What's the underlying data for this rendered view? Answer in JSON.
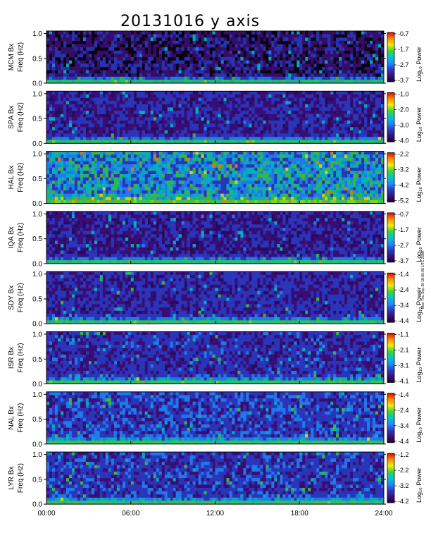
{
  "title": "20131016 y axis",
  "side_note": "Mon Thu Sep 30 18:06:08 UTC 2019",
  "colorbar_colors": [
    "#1a0033",
    "#3c0f78",
    "#2a3cc8",
    "#1e8cff",
    "#00c8c8",
    "#3cd23c",
    "#f0f000",
    "#ff8c00",
    "#e60000"
  ],
  "chart_data": {
    "type": "heatmap",
    "title": "20131016 y axis",
    "x_ticks": [
      "00:00",
      "06:00",
      "12:00",
      "18:00",
      "24:00"
    ],
    "x_range": [
      0,
      24
    ],
    "y_ticks": [
      "0.0",
      "0.5",
      "1.0"
    ],
    "ylim": [
      0,
      1.05
    ],
    "colorbar_label": "Log₁₀ Power",
    "panels": [
      {
        "station": "MCM Bx",
        "ylabel": "Freq (Hz)",
        "cb_ticks": [
          "-0.7",
          "-1.7",
          "-2.7",
          "-3.7"
        ],
        "base_level": 0.15
      },
      {
        "station": "SPA Bx",
        "ylabel": "Freq (Hz)",
        "cb_ticks": [
          "-1.0",
          "-2.0",
          "-3.0",
          "-4.0"
        ],
        "base_level": 0.18
      },
      {
        "station": "HAL Bx",
        "ylabel": "Freq (Hz)",
        "cb_ticks": [
          "-2.2",
          "-3.2",
          "-4.2",
          "-5.2"
        ],
        "base_level": 0.42
      },
      {
        "station": "IQA Bx",
        "ylabel": "Freq (Hz)",
        "cb_ticks": [
          "-0.7",
          "-1.7",
          "-2.7",
          "-3.7"
        ],
        "base_level": 0.17
      },
      {
        "station": "SDY Bx",
        "ylabel": "Freq (Hz)",
        "cb_ticks": [
          "-1.4",
          "-2.4",
          "-3.4",
          "-4.4"
        ],
        "base_level": 0.2
      },
      {
        "station": "ISR Bx",
        "ylabel": "Freq (Hz)",
        "cb_ticks": [
          "-1.1",
          "-2.1",
          "-3.1",
          "-4.1"
        ],
        "base_level": 0.22
      },
      {
        "station": "NAL Bx",
        "ylabel": "Freq (Hz)",
        "cb_ticks": [
          "-1.4",
          "-2.4",
          "-3.4",
          "-4.4"
        ],
        "base_level": 0.25
      },
      {
        "station": "LYR Bx",
        "ylabel": "Freq (Hz)",
        "cb_ticks": [
          "-1.2",
          "-2.2",
          "-3.2",
          "-4.2"
        ],
        "base_level": 0.24
      }
    ]
  }
}
